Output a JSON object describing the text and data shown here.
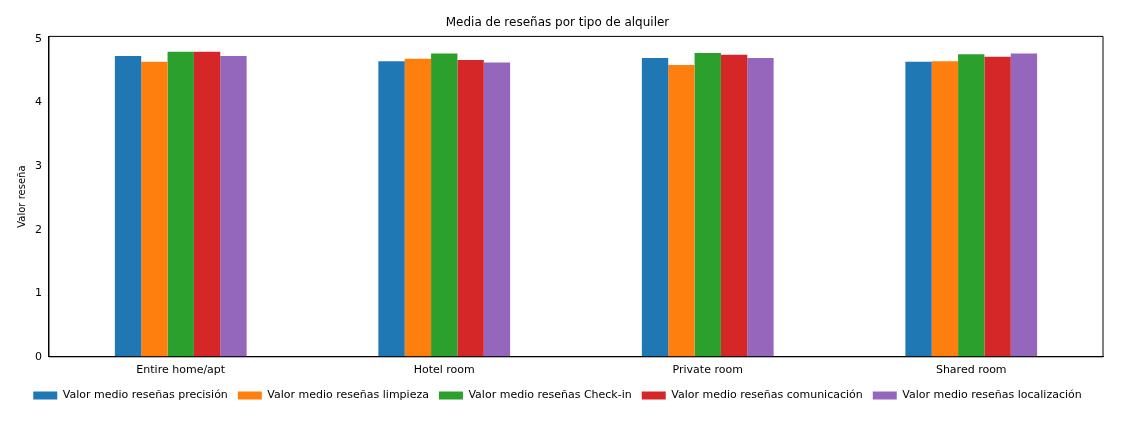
{
  "chart_data": {
    "type": "bar",
    "title": "Media de reseñas por tipo de alquiler",
    "ylabel": "Valor reseña",
    "categories": [
      "Entire home/apt",
      "Hotel room",
      "Private room",
      "Shared room"
    ],
    "series": [
      {
        "name": "Valor medio reseñas precisión",
        "color": "#1f77b4",
        "values": [
          4.73,
          4.65,
          4.7,
          4.64
        ]
      },
      {
        "name": "Valor medio reseñas limpieza",
        "color": "#ff7f0e",
        "values": [
          4.64,
          4.69,
          4.59,
          4.65
        ]
      },
      {
        "name": "Valor medio reseñas Check-in",
        "color": "#2ca02c",
        "values": [
          4.8,
          4.77,
          4.78,
          4.76
        ]
      },
      {
        "name": "Valor medio reseñas comunicación",
        "color": "#d62728",
        "values": [
          4.8,
          4.67,
          4.75,
          4.72
        ]
      },
      {
        "name": "Valor medio reseñas localización",
        "color": "#9467bd",
        "values": [
          4.73,
          4.63,
          4.7,
          4.77
        ]
      }
    ],
    "ylim": [
      0,
      5.04
    ],
    "yticks": [
      0,
      1,
      2,
      3,
      4,
      5
    ],
    "grid": false,
    "legend": "bottom"
  }
}
